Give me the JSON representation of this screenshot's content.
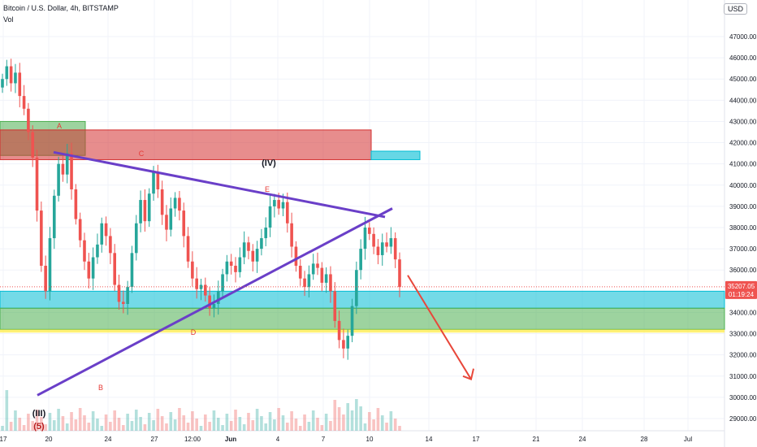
{
  "legend": {
    "symbol": "Bitcoin / U.S. Dollar, 4h, BITSTAMP",
    "volume": "Vol"
  },
  "currency_button": "USD",
  "colors": {
    "up": "#26a69a",
    "down": "#ef5350",
    "trendline": "#6a3fc8",
    "arrow": "#e8473a",
    "zone_cyan": "#00bcd4",
    "zone_green": "#4caf50",
    "zone_red": "#d32f2f",
    "zone_yellow": "#ffeb3b",
    "wave_label": "#e53935"
  },
  "price_badge": {
    "value": "35207.05",
    "countdown": "01:19:24",
    "color": "#ef5350"
  },
  "chart_data": {
    "type": "candlestick",
    "ylim": [
      28500,
      48000
    ],
    "y_ticks": [
      "47000.00",
      "46000.00",
      "45000.00",
      "44000.00",
      "43000.00",
      "42000.00",
      "41000.00",
      "40000.00",
      "39000.00",
      "38000.00",
      "37000.00",
      "36000.00",
      "35000.00",
      "34000.00",
      "33000.00",
      "32000.00",
      "31000.00",
      "30000.00",
      "29000.00"
    ],
    "x_ticks": [
      "17",
      "20",
      "24",
      "27",
      "12:00",
      "Jun",
      "4",
      "7",
      "10",
      "14",
      "17",
      "21",
      "24",
      "28",
      "Jul"
    ],
    "closes": [
      45000,
      45600,
      44800,
      45300,
      44200,
      43600,
      42500,
      41300,
      38800,
      36200,
      35000,
      37500,
      39500,
      41000,
      40500,
      41500,
      39800,
      38400,
      37400,
      36400,
      35600,
      36600,
      37200,
      38200,
      37600,
      36800,
      35300,
      34500,
      34400,
      35200,
      36800,
      38200,
      39300,
      38300,
      39600,
      40600,
      39800,
      38600,
      37900,
      38900,
      39400,
      38800,
      37600,
      36400,
      35600,
      35100,
      35300,
      34800,
      34200,
      34400,
      35000,
      35800,
      36400,
      36200,
      35900,
      36600,
      37300,
      36900,
      36400,
      37000,
      37500,
      38000,
      39000,
      39300,
      38900,
      39200,
      38200,
      37100,
      36200,
      35600,
      35200,
      35800,
      36300,
      36100,
      35400,
      35800,
      35000,
      33600,
      32700,
      32300,
      32900,
      34300,
      36000,
      37000,
      38000,
      37700,
      37100,
      36700,
      37300,
      37100,
      37500,
      36500,
      35200
    ],
    "wave_labels": [
      {
        "text": "A",
        "color": "#e53935"
      },
      {
        "text": "B",
        "color": "#e53935"
      },
      {
        "text": "C",
        "color": "#e53935"
      },
      {
        "text": "D",
        "color": "#e53935"
      },
      {
        "text": "E",
        "color": "#e53935"
      },
      {
        "text": "(IV)",
        "color": "#131722"
      },
      {
        "text": "(III)",
        "color": "#131722"
      },
      {
        "text": "(5)",
        "color": "#b71c1c"
      }
    ]
  }
}
